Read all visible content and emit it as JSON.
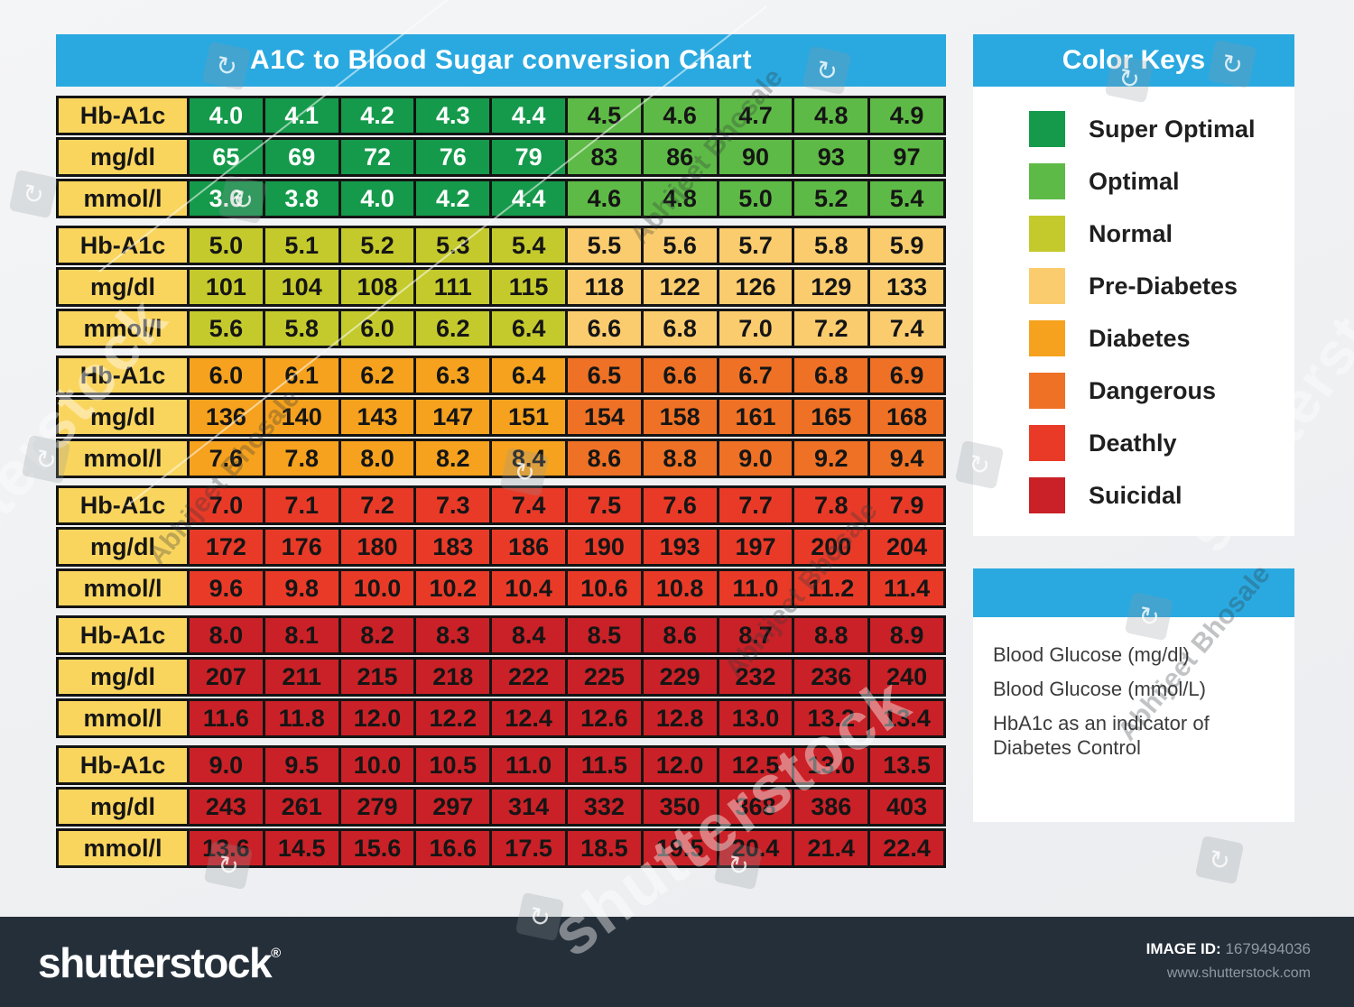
{
  "colors": {
    "accent_blue": "#2aa9e0",
    "label_yellow": "#fad55e",
    "super_optimal": "#159a4b",
    "optimal": "#5eba46",
    "normal": "#c4ca2c",
    "pre_diabetes": "#fbcc6e",
    "diabetes": "#f6a21e",
    "dangerous": "#ee7125",
    "deathly": "#e93a28",
    "suicidal": "#c92127",
    "footer_bg": "#252f3a"
  },
  "chart_data": {
    "type": "table",
    "title": "A1C to Blood Sugar conversion Chart",
    "row_labels": [
      "Hb-A1c",
      "mg/dl",
      "mmol/l"
    ],
    "blocks": [
      {
        "left_category": "Super Optimal",
        "right_category": "Optimal",
        "hb_a1c": [
          "4.0",
          "4.1",
          "4.2",
          "4.3",
          "4.4",
          "4.5",
          "4.6",
          "4.7",
          "4.8",
          "4.9"
        ],
        "mg_dl": [
          "65",
          "69",
          "72",
          "76",
          "79",
          "83",
          "86",
          "90",
          "93",
          "97"
        ],
        "mmol_l": [
          "3.6",
          "3.8",
          "4.0",
          "4.2",
          "4.4",
          "4.6",
          "4.8",
          "5.0",
          "5.2",
          "5.4"
        ]
      },
      {
        "left_category": "Normal",
        "right_category": "Pre-Diabetes",
        "hb_a1c": [
          "5.0",
          "5.1",
          "5.2",
          "5.3",
          "5.4",
          "5.5",
          "5.6",
          "5.7",
          "5.8",
          "5.9"
        ],
        "mg_dl": [
          "101",
          "104",
          "108",
          "111",
          "115",
          "118",
          "122",
          "126",
          "129",
          "133"
        ],
        "mmol_l": [
          "5.6",
          "5.8",
          "6.0",
          "6.2",
          "6.4",
          "6.6",
          "6.8",
          "7.0",
          "7.2",
          "7.4"
        ]
      },
      {
        "left_category": "Diabetes",
        "right_category": "Dangerous",
        "hb_a1c": [
          "6.0",
          "6.1",
          "6.2",
          "6.3",
          "6.4",
          "6.5",
          "6.6",
          "6.7",
          "6.8",
          "6.9"
        ],
        "mg_dl": [
          "136",
          "140",
          "143",
          "147",
          "151",
          "154",
          "158",
          "161",
          "165",
          "168"
        ],
        "mmol_l": [
          "7.6",
          "7.8",
          "8.0",
          "8.2",
          "8.4",
          "8.6",
          "8.8",
          "9.0",
          "9.2",
          "9.4"
        ]
      },
      {
        "left_category": "Deathly",
        "right_category": "Deathly",
        "hb_a1c": [
          "7.0",
          "7.1",
          "7.2",
          "7.3",
          "7.4",
          "7.5",
          "7.6",
          "7.7",
          "7.8",
          "7.9"
        ],
        "mg_dl": [
          "172",
          "176",
          "180",
          "183",
          "186",
          "190",
          "193",
          "197",
          "200",
          "204"
        ],
        "mmol_l": [
          "9.6",
          "9.8",
          "10.0",
          "10.2",
          "10.4",
          "10.6",
          "10.8",
          "11.0",
          "11.2",
          "11.4"
        ]
      },
      {
        "left_category": "Suicidal",
        "right_category": "Suicidal",
        "hb_a1c": [
          "8.0",
          "8.1",
          "8.2",
          "8.3",
          "8.4",
          "8.5",
          "8.6",
          "8.7",
          "8.8",
          "8.9"
        ],
        "mg_dl": [
          "207",
          "211",
          "215",
          "218",
          "222",
          "225",
          "229",
          "232",
          "236",
          "240"
        ],
        "mmol_l": [
          "11.6",
          "11.8",
          "12.0",
          "12.2",
          "12.4",
          "12.6",
          "12.8",
          "13.0",
          "13.2",
          "13.4"
        ]
      },
      {
        "left_category": "Suicidal",
        "right_category": "Suicidal",
        "hb_a1c": [
          "9.0",
          "9.5",
          "10.0",
          "10.5",
          "11.0",
          "11.5",
          "12.0",
          "12.5",
          "13.0",
          "13.5"
        ],
        "mg_dl": [
          "243",
          "261",
          "279",
          "297",
          "314",
          "332",
          "350",
          "368",
          "386",
          "403"
        ],
        "mmol_l": [
          "13.6",
          "14.5",
          "15.6",
          "16.6",
          "17.5",
          "18.5",
          "19.5",
          "20.4",
          "21.4",
          "22.4"
        ]
      }
    ],
    "legend_title": "Color Keys",
    "legend": [
      {
        "label": "Super Optimal",
        "color_key": "super_optimal"
      },
      {
        "label": "Optimal",
        "color_key": "optimal"
      },
      {
        "label": "Normal",
        "color_key": "normal"
      },
      {
        "label": "Pre-Diabetes",
        "color_key": "pre_diabetes"
      },
      {
        "label": "Diabetes",
        "color_key": "diabetes"
      },
      {
        "label": "Dangerous",
        "color_key": "dangerous"
      },
      {
        "label": "Deathly",
        "color_key": "deathly"
      },
      {
        "label": "Suicidal",
        "color_key": "suicidal"
      }
    ]
  },
  "table_style": {
    "blocks": [
      {
        "left_key": "super_optimal",
        "right_key": "optimal",
        "left_text": "#ffffff",
        "right_text": "#151515"
      },
      {
        "left_key": "normal",
        "right_key": "pre_diabetes",
        "left_text": "#151515",
        "right_text": "#151515"
      },
      {
        "left_key": "diabetes",
        "right_key": "dangerous",
        "left_text": "#151515",
        "right_text": "#151515"
      },
      {
        "left_key": "deathly",
        "right_key": "deathly",
        "left_text": "#151515",
        "right_text": "#151515"
      },
      {
        "left_key": "suicidal",
        "right_key": "suicidal",
        "left_text": "#151515",
        "right_text": "#151515"
      },
      {
        "left_key": "suicidal",
        "right_key": "suicidal",
        "left_text": "#151515",
        "right_text": "#151515"
      }
    ]
  },
  "info_panel": {
    "lines": [
      "Blood Glucose (mg/dl)",
      "Blood Glucose (mmol/L)",
      "HbA1c as an indicator of Diabetes Control"
    ]
  },
  "watermark": {
    "author": "Abhijeet Bhosale",
    "brand": "shutterstock",
    "tile_glyph": "↻"
  },
  "footer": {
    "logo": "shutterstock",
    "registered_mark": "®",
    "image_id_label": "IMAGE ID:",
    "image_id": "1679494036",
    "website": "www.shutterstock.com"
  }
}
